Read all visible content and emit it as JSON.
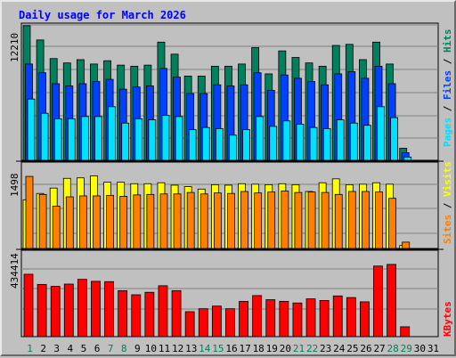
{
  "title": "Daily usage for March 2026",
  "colors": {
    "hits": "#00805c",
    "files": "#0040ff",
    "pages": "#00e0ff",
    "visits": "#ffff00",
    "sites": "#ff8000",
    "kbytes": "#ff0000",
    "weekday_label": "#000000",
    "weekend_label": "#00805c",
    "separator": "#000000",
    "legend_separator": "#000000",
    "panel_bg": "#c0c0c0",
    "grid": "#808080"
  },
  "chart_data": [
    {
      "type": "bar",
      "name": "hits-files-pages",
      "ymax_label": "12210",
      "ylim": [
        0,
        12210
      ],
      "legend": [
        "Hits",
        "Files",
        "Pages"
      ],
      "categories": [
        "1",
        "2",
        "3",
        "4",
        "5",
        "6",
        "7",
        "8",
        "9",
        "10",
        "11",
        "12",
        "13",
        "14",
        "15",
        "16",
        "17",
        "18",
        "19",
        "20",
        "21",
        "22",
        "23",
        "24",
        "25",
        "26",
        "27",
        "28",
        "29",
        "30",
        "31"
      ],
      "series": [
        {
          "name": "Hits",
          "values": [
            12300,
            11000,
            9300,
            8900,
            9200,
            8800,
            9100,
            8700,
            8600,
            8700,
            10800,
            9700,
            7700,
            7700,
            8600,
            8600,
            8800,
            10300,
            7900,
            10000,
            9400,
            8900,
            8600,
            10500,
            10600,
            9200,
            10800,
            8800,
            1100,
            0,
            0
          ]
        },
        {
          "name": "Files",
          "values": [
            8800,
            8000,
            7000,
            6800,
            7000,
            7200,
            7400,
            6500,
            6700,
            6800,
            8400,
            7600,
            6100,
            6100,
            6900,
            6800,
            6900,
            8000,
            6400,
            7800,
            7500,
            7200,
            6900,
            7900,
            8100,
            7500,
            8600,
            7000,
            700,
            0,
            0
          ]
        },
        {
          "name": "Pages",
          "values": [
            5600,
            4300,
            3800,
            3800,
            4000,
            4000,
            4900,
            3400,
            3800,
            3700,
            4100,
            4000,
            2800,
            3000,
            2900,
            2300,
            2800,
            4000,
            3100,
            3600,
            3300,
            3000,
            2900,
            3700,
            3400,
            3200,
            4900,
            3900,
            300,
            0,
            0
          ]
        }
      ]
    },
    {
      "type": "bar",
      "name": "visits-sites",
      "ymax_label": "1498",
      "ylim": [
        0,
        1498
      ],
      "legend": [
        "Visits",
        "Sites"
      ],
      "categories": [
        "1",
        "2",
        "3",
        "4",
        "5",
        "6",
        "7",
        "8",
        "9",
        "10",
        "11",
        "12",
        "13",
        "14",
        "15",
        "16",
        "17",
        "18",
        "19",
        "20",
        "21",
        "22",
        "23",
        "24",
        "25",
        "26",
        "27",
        "28",
        "29",
        "30",
        "31"
      ],
      "series": [
        {
          "name": "Visits",
          "values": [
            1000,
            1130,
            1240,
            1440,
            1450,
            1490,
            1360,
            1360,
            1330,
            1330,
            1350,
            1300,
            1270,
            1220,
            1310,
            1300,
            1330,
            1320,
            1310,
            1330,
            1310,
            1170,
            1350,
            1430,
            1310,
            1320,
            1350,
            1320,
            60,
            0,
            0
          ]
        },
        {
          "name": "Sites",
          "values": [
            1480,
            1110,
            870,
            1060,
            1080,
            1080,
            1090,
            1070,
            1100,
            1110,
            1120,
            1120,
            1150,
            1120,
            1140,
            1130,
            1170,
            1140,
            1160,
            1180,
            1150,
            1160,
            1150,
            1110,
            1170,
            1170,
            1160,
            1030,
            130,
            0,
            0
          ]
        }
      ]
    },
    {
      "type": "bar",
      "name": "kbytes",
      "ymax_label": "434414",
      "ylim": [
        0,
        434414
      ],
      "legend": [
        "KBytes"
      ],
      "categories": [
        "1",
        "2",
        "3",
        "4",
        "5",
        "6",
        "7",
        "8",
        "9",
        "10",
        "11",
        "12",
        "13",
        "14",
        "15",
        "16",
        "17",
        "18",
        "19",
        "20",
        "21",
        "22",
        "23",
        "24",
        "25",
        "26",
        "27",
        "28",
        "29",
        "30",
        "31"
      ],
      "series": [
        {
          "name": "KBytes",
          "values": [
            380000,
            318000,
            306000,
            320000,
            349000,
            337000,
            335000,
            280000,
            255000,
            270000,
            310000,
            280000,
            152000,
            170000,
            186000,
            170000,
            215000,
            250000,
            225000,
            215000,
            205000,
            230000,
            220000,
            248000,
            238000,
            212000,
            430000,
            440000,
            60000,
            0,
            0
          ]
        }
      ]
    }
  ],
  "x_labels": [
    {
      "text": "1",
      "weekend": true
    },
    {
      "text": "2",
      "weekend": false
    },
    {
      "text": "3",
      "weekend": false
    },
    {
      "text": "4",
      "weekend": false
    },
    {
      "text": "5",
      "weekend": false
    },
    {
      "text": "6",
      "weekend": false
    },
    {
      "text": "7",
      "weekend": true
    },
    {
      "text": "8",
      "weekend": true
    },
    {
      "text": "9",
      "weekend": false
    },
    {
      "text": "10",
      "weekend": false
    },
    {
      "text": "11",
      "weekend": false
    },
    {
      "text": "12",
      "weekend": false
    },
    {
      "text": "13",
      "weekend": false
    },
    {
      "text": "14",
      "weekend": true
    },
    {
      "text": "15",
      "weekend": true
    },
    {
      "text": "16",
      "weekend": false
    },
    {
      "text": "17",
      "weekend": false
    },
    {
      "text": "18",
      "weekend": false
    },
    {
      "text": "19",
      "weekend": false
    },
    {
      "text": "20",
      "weekend": false
    },
    {
      "text": "21",
      "weekend": true
    },
    {
      "text": "22",
      "weekend": true
    },
    {
      "text": "23",
      "weekend": false
    },
    {
      "text": "24",
      "weekend": false
    },
    {
      "text": "25",
      "weekend": false
    },
    {
      "text": "26",
      "weekend": false
    },
    {
      "text": "27",
      "weekend": false
    },
    {
      "text": "28",
      "weekend": true
    },
    {
      "text": "29",
      "weekend": true
    },
    {
      "text": "30",
      "weekend": false
    },
    {
      "text": "31",
      "weekend": false
    }
  ]
}
